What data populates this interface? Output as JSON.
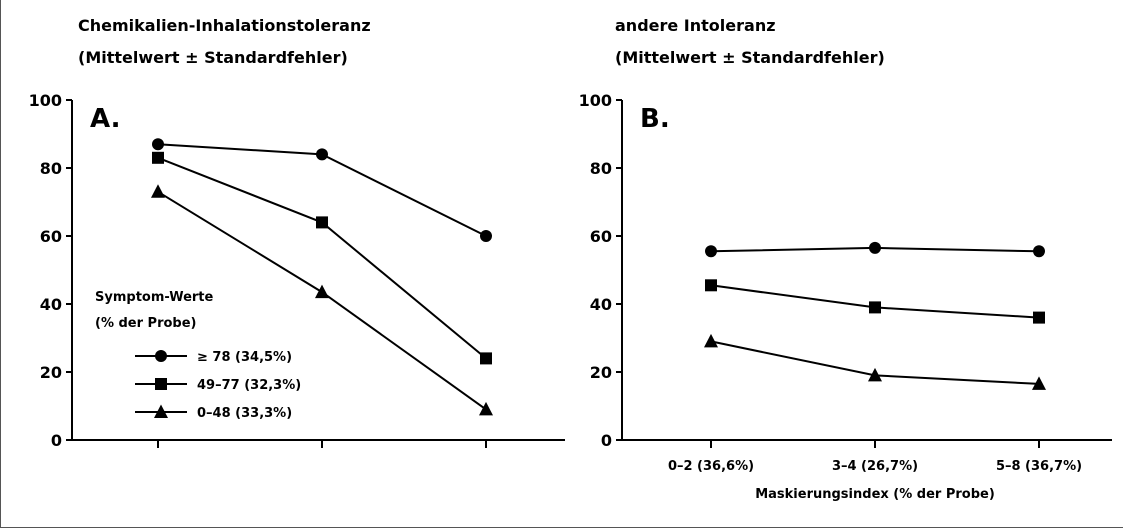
{
  "chart_data": [
    {
      "type": "line",
      "panel": "A.",
      "title": "Chemikalien-Inhalationstoleranz",
      "subtitle": "(Mittelwert ± Standardfehler)",
      "ylim": [
        0,
        100
      ],
      "yticks": [
        "0",
        "20",
        "40",
        "60",
        "80",
        "100"
      ],
      "categories": [
        "0–2 (36,6%)",
        "3–4 (26,7%)",
        "5–8 (36,7%)"
      ],
      "show_xtick_labels": false,
      "legend": {
        "title_line1": "Symptom-Werte",
        "title_line2": "(% der Probe)",
        "placement": "center-left"
      },
      "series": [
        {
          "name": "≥ 78 (34,5%)",
          "marker": "circle",
          "values": [
            87,
            84,
            60
          ]
        },
        {
          "name": "49–77 (32,3%)",
          "marker": "square",
          "values": [
            83,
            64,
            24
          ]
        },
        {
          "name": "0–48 (33,3%)",
          "marker": "triangle",
          "values": [
            73,
            43.5,
            9
          ]
        }
      ]
    },
    {
      "type": "line",
      "panel": "B.",
      "title": "andere Intoleranz",
      "subtitle": "(Mittelwert ± Standardfehler)",
      "ylim": [
        0,
        100
      ],
      "yticks": [
        "0",
        "20",
        "40",
        "60",
        "80",
        "100"
      ],
      "categories": [
        "0–2 (36,6%)",
        "3–4 (26,7%)",
        "5–8 (36,7%)"
      ],
      "show_xtick_labels": true,
      "xlabel": "Maskierungsindex (% der Probe)",
      "series": [
        {
          "marker": "circle",
          "values": [
            55.5,
            56.5,
            55.5
          ]
        },
        {
          "marker": "square",
          "values": [
            45.5,
            39,
            36
          ]
        },
        {
          "marker": "triangle",
          "values": [
            29,
            19,
            16.5
          ]
        }
      ]
    }
  ]
}
